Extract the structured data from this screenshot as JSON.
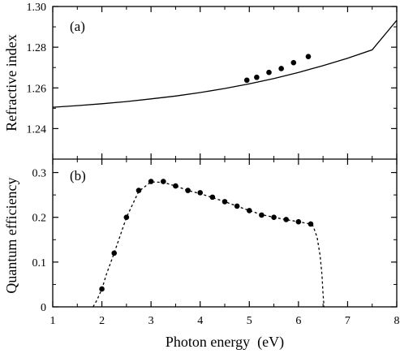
{
  "chart_data": [
    {
      "type": "scatter",
      "panel_label": "(a)",
      "xlabel": "",
      "ylabel": "Refractive index",
      "xlim": [
        1,
        8
      ],
      "ylim": [
        1.225,
        1.3
      ],
      "yticks": [
        1.24,
        1.26,
        1.28,
        1.3
      ],
      "ytick_labels": [
        "1.24",
        "1.26",
        "1.28",
        "1.30"
      ],
      "curve": {
        "style": "solid",
        "x": [
          1,
          1.5,
          2,
          2.5,
          3,
          3.5,
          4,
          4.5,
          5,
          5.5,
          6,
          6.5,
          7,
          7.5,
          8
        ],
        "y": [
          1.2505,
          1.2513,
          1.2522,
          1.2533,
          1.2546,
          1.256,
          1.2577,
          1.2597,
          1.262,
          1.2646,
          1.2676,
          1.2709,
          1.2746,
          1.2787,
          1.2932
        ]
      },
      "series": [
        {
          "x": [
            4.95,
            5.15,
            5.4,
            5.65,
            5.9,
            6.2
          ],
          "y": [
            1.2638,
            1.2652,
            1.2676,
            1.2695,
            1.2724,
            1.2754
          ]
        }
      ]
    },
    {
      "type": "scatter",
      "panel_label": "(b)",
      "xlabel": "Photon energy  (eV)",
      "ylabel": "Quantum efficiency",
      "xlim": [
        1,
        8
      ],
      "ylim": [
        0,
        0.33
      ],
      "xticks": [
        1,
        2,
        3,
        4,
        5,
        6,
        7,
        8
      ],
      "xtick_labels": [
        "1",
        "2",
        "3",
        "4",
        "5",
        "6",
        "7",
        "8"
      ],
      "yticks": [
        0,
        0.1,
        0.2,
        0.3
      ],
      "ytick_labels": [
        "0",
        "0.1",
        "0.2",
        "0.3"
      ],
      "curve": {
        "style": "dash-dot",
        "x": [
          1.82,
          1.9,
          2.0,
          2.1,
          2.25,
          2.5,
          2.75,
          3.0,
          3.25,
          3.5,
          3.75,
          4.0,
          4.25,
          4.5,
          4.75,
          5.0,
          5.25,
          5.5,
          5.75,
          6.0,
          6.25,
          6.3,
          6.38,
          6.44,
          6.48,
          6.5,
          6.52
        ],
        "y": [
          0,
          0.015,
          0.04,
          0.075,
          0.12,
          0.2,
          0.258,
          0.279,
          0.278,
          0.27,
          0.26,
          0.253,
          0.244,
          0.235,
          0.225,
          0.215,
          0.206,
          0.2,
          0.195,
          0.19,
          0.185,
          0.18,
          0.155,
          0.115,
          0.07,
          0.03,
          0
        ]
      },
      "series": [
        {
          "x": [
            2.0,
            2.25,
            2.5,
            2.75,
            3.0,
            3.25,
            3.5,
            3.75,
            4.0,
            4.25,
            4.5,
            4.75,
            5.0,
            5.25,
            5.5,
            5.75,
            6.0,
            6.25
          ],
          "y": [
            0.04,
            0.12,
            0.2,
            0.26,
            0.28,
            0.28,
            0.27,
            0.26,
            0.255,
            0.245,
            0.235,
            0.225,
            0.215,
            0.205,
            0.2,
            0.195,
            0.19,
            0.185
          ]
        }
      ]
    }
  ]
}
